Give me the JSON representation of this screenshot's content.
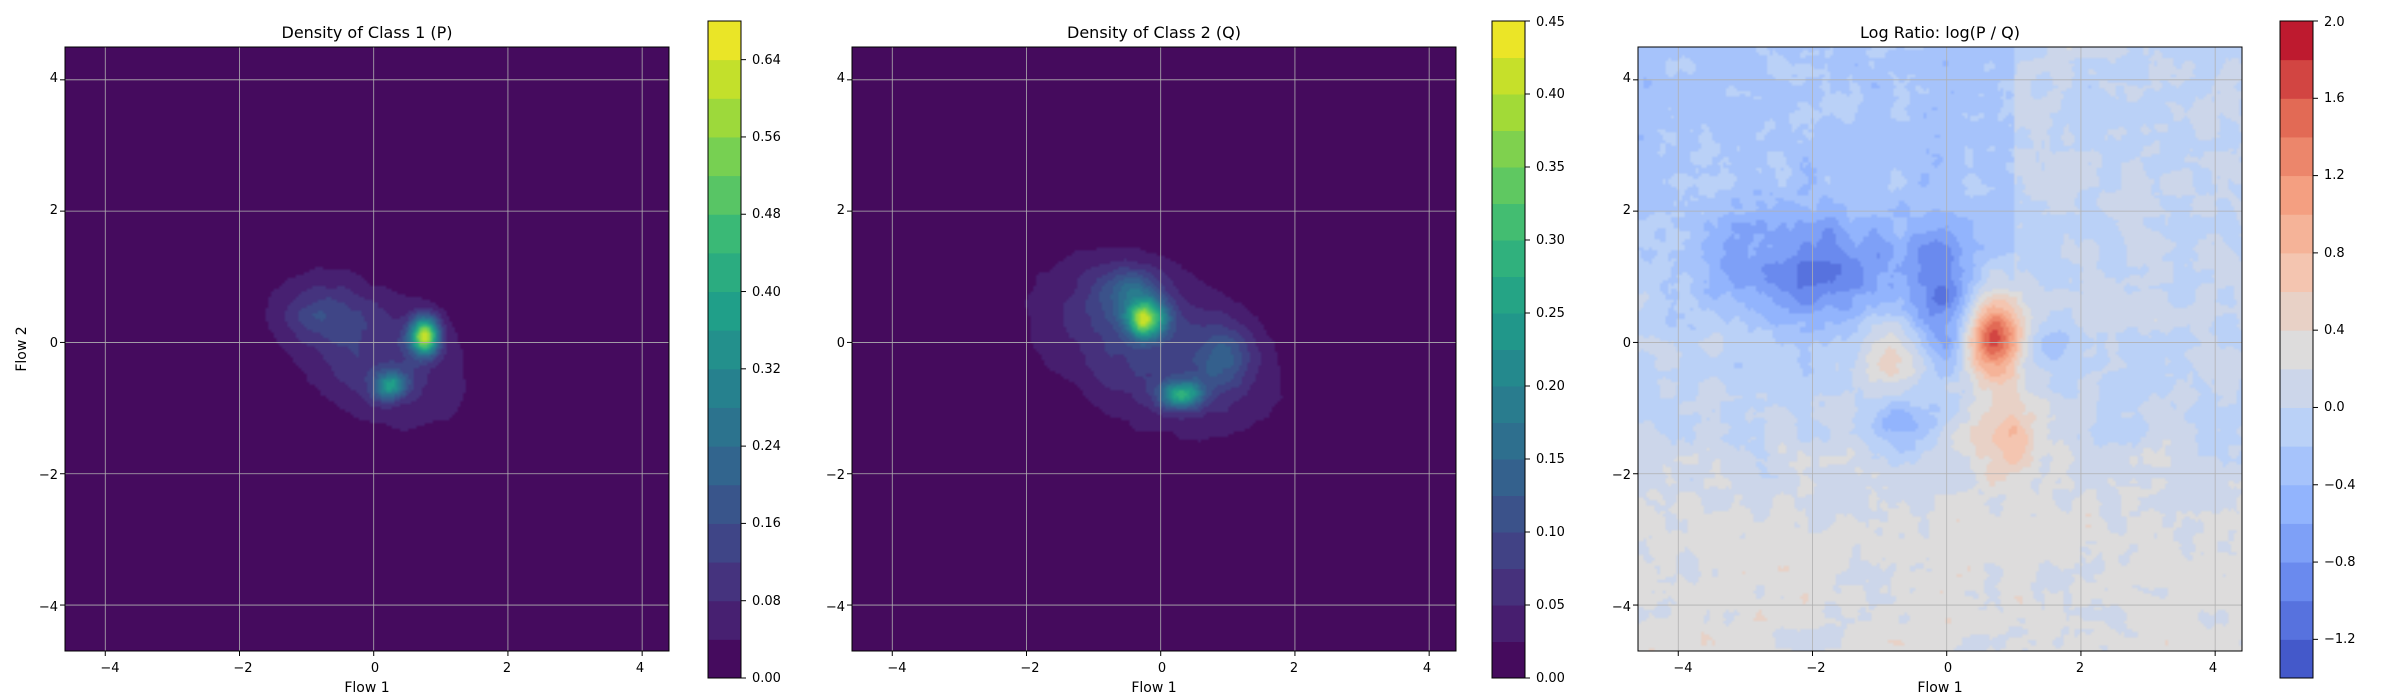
{
  "chart_data": [
    {
      "type": "heatmap",
      "title": "Density of Class 1 (P)",
      "xlabel": "Flow 1",
      "ylabel": "Flow 2",
      "xlim": [
        -4.6,
        4.4
      ],
      "ylim": [
        -4.7,
        4.5
      ],
      "xticks": [
        -4,
        -2,
        0,
        2,
        4
      ],
      "yticks": [
        -4,
        -2,
        0,
        2,
        4
      ],
      "xtick_labels": [
        "−4",
        "−2",
        "0",
        "2",
        "4"
      ],
      "ytick_labels": [
        "−4",
        "−2",
        "0",
        "2",
        "4"
      ],
      "grid": true,
      "colormap": "viridis",
      "colorbar": {
        "min": 0.0,
        "max": 0.68,
        "ticks": [
          0.0,
          0.08,
          0.16,
          0.24,
          0.32,
          0.4,
          0.48,
          0.56,
          0.64
        ],
        "tick_labels": [
          "0.00",
          "0.08",
          "0.16",
          "0.24",
          "0.32",
          "0.40",
          "0.48",
          "0.56",
          "0.64"
        ],
        "levels": 17
      },
      "density_blobs": [
        {
          "x": 0.0,
          "y": -0.15,
          "sx": 0.95,
          "sy": 0.8,
          "rho": -0.4,
          "amp": 0.12
        },
        {
          "x": 0.75,
          "y": 0.1,
          "sx": 0.15,
          "sy": 0.2,
          "rho": 0.0,
          "amp": 0.5
        },
        {
          "x": 0.25,
          "y": -0.65,
          "sx": 0.17,
          "sy": 0.14,
          "rho": 0.0,
          "amp": 0.3
        },
        {
          "x": -0.8,
          "y": 0.4,
          "sx": 0.4,
          "sy": 0.3,
          "rho": 0.0,
          "amp": 0.07
        }
      ]
    },
    {
      "type": "heatmap",
      "title": "Density of Class 2 (Q)",
      "xlabel": "Flow 1",
      "ylabel": "",
      "xlim": [
        -4.6,
        4.4
      ],
      "ylim": [
        -4.7,
        4.5
      ],
      "xticks": [
        -4,
        -2,
        0,
        2,
        4
      ],
      "yticks": [
        -4,
        -2,
        0,
        2,
        4
      ],
      "xtick_labels": [
        "−4",
        "−2",
        "0",
        "2",
        "4"
      ],
      "ytick_labels": [
        "−4",
        "−2",
        "0",
        "2",
        "4"
      ],
      "grid": true,
      "colormap": "viridis",
      "colorbar": {
        "min": 0.0,
        "max": 0.45,
        "ticks": [
          0.0,
          0.05,
          0.1,
          0.15,
          0.2,
          0.25,
          0.3,
          0.35,
          0.4,
          0.45
        ],
        "tick_labels": [
          "0.00",
          "0.05",
          "0.10",
          "0.15",
          "0.20",
          "0.25",
          "0.30",
          "0.35",
          "0.40",
          "0.45"
        ],
        "levels": 18
      },
      "density_blobs": [
        {
          "x": -0.1,
          "y": -0.05,
          "sx": 1.2,
          "sy": 0.9,
          "rho": -0.4,
          "amp": 0.09
        },
        {
          "x": -0.2,
          "y": 0.35,
          "sx": 0.2,
          "sy": 0.2,
          "rho": 0.0,
          "amp": 0.3
        },
        {
          "x": 0.3,
          "y": -0.8,
          "sx": 0.22,
          "sy": 0.14,
          "rho": 0.0,
          "amp": 0.22
        },
        {
          "x": -0.5,
          "y": 0.8,
          "sx": 0.35,
          "sy": 0.25,
          "rho": 0.0,
          "amp": 0.1
        },
        {
          "x": 0.9,
          "y": -0.2,
          "sx": 0.3,
          "sy": 0.3,
          "rho": 0.0,
          "amp": 0.07
        }
      ]
    },
    {
      "type": "heatmap",
      "title": "Log Ratio: log(P / Q)",
      "xlabel": "Flow 1",
      "ylabel": "",
      "xlim": [
        -4.6,
        4.4
      ],
      "ylim": [
        -4.7,
        4.5
      ],
      "xticks": [
        -4,
        -2,
        0,
        2,
        4
      ],
      "yticks": [
        -4,
        -2,
        0,
        2,
        4
      ],
      "xtick_labels": [
        "−4",
        "−2",
        "0",
        "2",
        "4"
      ],
      "ytick_labels": [
        "−4",
        "−2",
        "0",
        "2",
        "4"
      ],
      "grid": true,
      "colormap": "coolwarm",
      "colorbar": {
        "min": -1.4,
        "max": 2.0,
        "ticks": [
          -1.2,
          -0.8,
          -0.4,
          0.0,
          0.4,
          0.8,
          1.2,
          1.6,
          2.0
        ],
        "tick_labels": [
          "−1.2",
          "−0.8",
          "−0.4",
          "0.0",
          "0.4",
          "0.8",
          "1.2",
          "1.6",
          "2.0"
        ],
        "levels": 17
      },
      "ratio_blobs": [
        {
          "x": 0.7,
          "y": 0.05,
          "sx": 0.3,
          "sy": 0.45,
          "amp": 1.6
        },
        {
          "x": -0.8,
          "y": -0.2,
          "sx": 0.35,
          "sy": 0.35,
          "amp": 0.7
        },
        {
          "x": 0.9,
          "y": -1.4,
          "sx": 0.4,
          "sy": 0.5,
          "amp": 0.7
        },
        {
          "x": -2.0,
          "y": 1.0,
          "sx": 1.0,
          "sy": 0.6,
          "amp": -0.9
        },
        {
          "x": -0.1,
          "y": 0.6,
          "sx": 0.35,
          "sy": 0.8,
          "amp": -0.8
        },
        {
          "x": -0.7,
          "y": -1.3,
          "sx": 0.35,
          "sy": 0.3,
          "amp": -0.5
        },
        {
          "x": 1.5,
          "y": 0.0,
          "sx": 0.3,
          "sy": 0.25,
          "amp": -0.4
        }
      ],
      "ratio_base": {
        "positive_lower_half": 0.25,
        "negative_upper_left": -0.25
      }
    }
  ]
}
